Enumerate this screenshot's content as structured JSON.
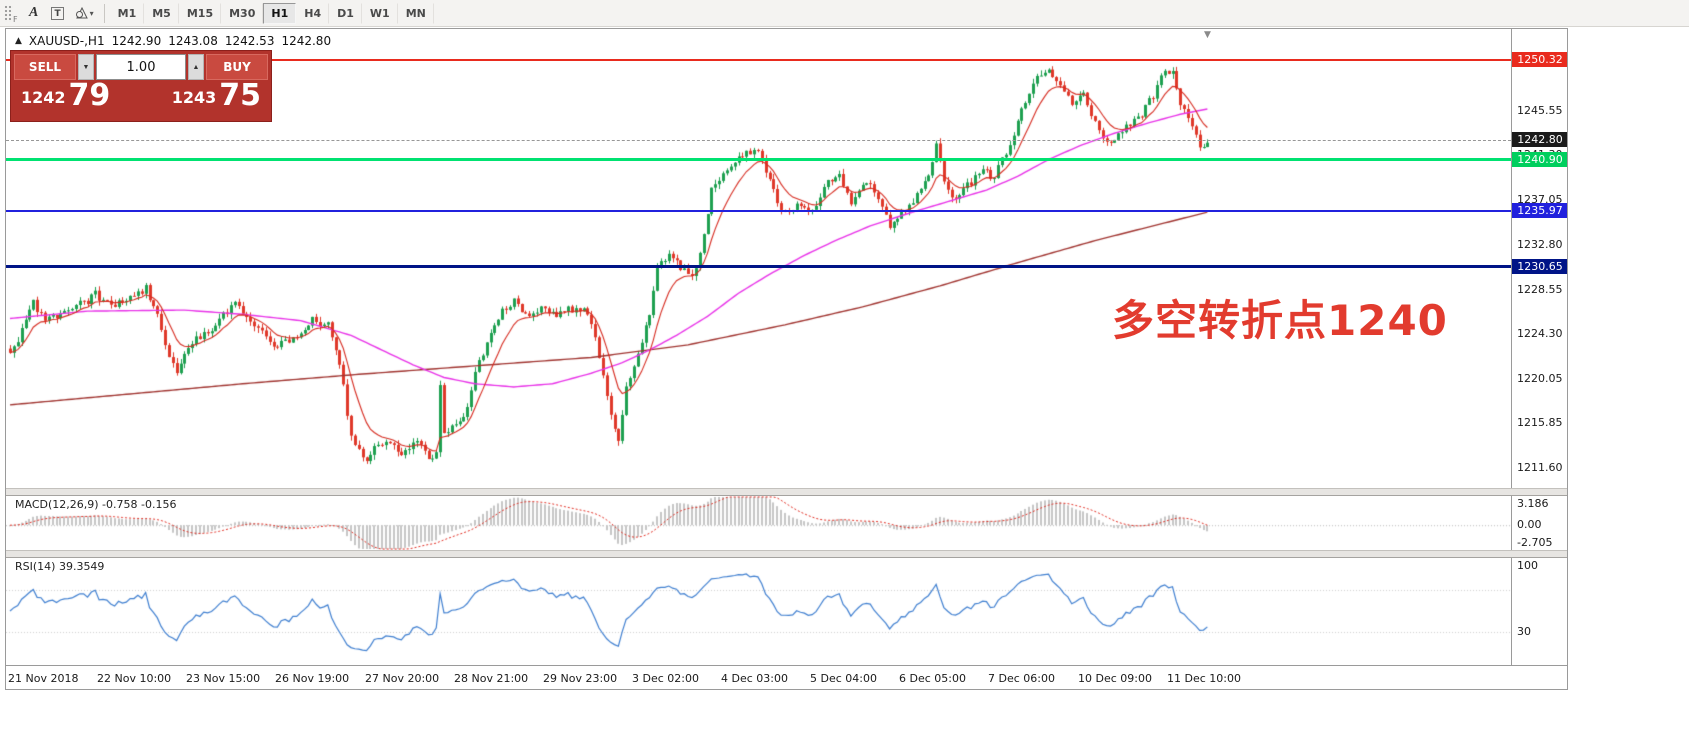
{
  "toolbar": {
    "grip_label": "F",
    "tool_a": "A",
    "tool_t": "T",
    "timeframes": [
      "M1",
      "M5",
      "M15",
      "M30",
      "H1",
      "H4",
      "D1",
      "W1",
      "MN"
    ],
    "active_timeframe": "H1"
  },
  "chart_header": {
    "symbol": "XAUUSD-,H1",
    "open": "1242.90",
    "high": "1243.08",
    "low": "1242.53",
    "close": "1242.80"
  },
  "trade_panel": {
    "sell_label": "SELL",
    "buy_label": "BUY",
    "volume": "1.00",
    "sell_price_main": "1242",
    "sell_price_pips": "79",
    "buy_price_main": "1243",
    "buy_price_pips": "75"
  },
  "annotation": {
    "text": "多空转折点1240",
    "color": "#e23b2e"
  },
  "price_axis": {
    "grid_labels": [
      {
        "text": "1245.55",
        "value": 1245.55
      },
      {
        "text": "1241.30",
        "value": 1241.3
      },
      {
        "text": "1237.05",
        "value": 1237.05
      },
      {
        "text": "1232.80",
        "value": 1232.8
      },
      {
        "text": "1228.55",
        "value": 1228.55
      },
      {
        "text": "1224.30",
        "value": 1224.3
      },
      {
        "text": "1220.05",
        "value": 1220.05
      },
      {
        "text": "1215.85",
        "value": 1215.85
      },
      {
        "text": "1211.60",
        "value": 1211.6
      }
    ],
    "badges": [
      {
        "name": "resistance-1250",
        "text": "1250.32",
        "value": 1250.32,
        "bg": "#e92b1e",
        "line_color": "#e92b1e",
        "line_width": 2,
        "line_style": "solid"
      },
      {
        "name": "current-price",
        "text": "1242.80",
        "value": 1242.8,
        "bg": "#1b1b1b",
        "line_color": "#979797",
        "line_width": 1,
        "line_style": "dashed"
      },
      {
        "name": "pivot-1240",
        "text": "1240.90",
        "value": 1240.9,
        "bg": "#00cf5e",
        "line_color": "#00e271",
        "line_width": 3,
        "line_style": "solid"
      },
      {
        "name": "support-1235",
        "text": "1235.97",
        "value": 1235.97,
        "bg": "#2121dd",
        "line_color": "#2121dd",
        "line_width": 2,
        "line_style": "solid"
      },
      {
        "name": "support-1230",
        "text": "1230.65",
        "value": 1230.65,
        "bg": "#001487",
        "line_color": "#001487",
        "line_width": 3,
        "line_style": "solid"
      }
    ]
  },
  "indicators": {
    "macd": {
      "label": "MACD(12,26,9) -0.758 -0.156",
      "params": [
        12,
        26,
        9
      ],
      "macd_value": -0.758,
      "signal_value": -0.156,
      "scale": [
        {
          "text": "3.186",
          "value": 3.186
        },
        {
          "text": "0.00",
          "value": 0
        },
        {
          "text": "-2.705",
          "value": -2.705
        }
      ],
      "range": [
        -2.705,
        3.186
      ]
    },
    "rsi": {
      "label": "RSI(14) 39.3549",
      "period": 14,
      "value": 39.3549,
      "scale": [
        {
          "text": "100",
          "value": 100
        },
        {
          "text": "30",
          "value": 30
        }
      ],
      "range": [
        0,
        100
      ],
      "levels": [
        30,
        70
      ]
    }
  },
  "chart_data": {
    "type": "candlestick",
    "symbol": "XAUUSD",
    "timeframe": "H1",
    "title": "XAUUSD-,H1 1242.90 1243.08 1242.53 1242.80",
    "price_range": [
      1209.7,
      1253.3
    ],
    "candle_count": 310,
    "ma_fast_period": 9,
    "colors": {
      "up": "#1ea050",
      "down": "#df382a",
      "ma_fast": "#d62b20",
      "ma_mid": "#e832e8",
      "ma_slow": "#a03430",
      "macd_hist": "#c6c6c6",
      "macd_signal": "#e02b20",
      "rsi": "#3f7fd0"
    },
    "close_path": [
      [
        0,
        1222.3
      ],
      [
        3,
        1224.5
      ],
      [
        6,
        1227.3
      ],
      [
        9,
        1225.8
      ],
      [
        13,
        1226.2
      ],
      [
        18,
        1227.0
      ],
      [
        22,
        1228.2
      ],
      [
        26,
        1227.0
      ],
      [
        30,
        1227.6
      ],
      [
        35,
        1228.7
      ],
      [
        38,
        1226.0
      ],
      [
        41,
        1222.0
      ],
      [
        43,
        1221.0
      ],
      [
        46,
        1223.4
      ],
      [
        52,
        1224.8
      ],
      [
        58,
        1227.2
      ],
      [
        61,
        1226.0
      ],
      [
        64,
        1225.0
      ],
      [
        68,
        1223.2
      ],
      [
        73,
        1223.8
      ],
      [
        78,
        1225.9
      ],
      [
        82,
        1225.0
      ],
      [
        85,
        1221.5
      ],
      [
        88,
        1214.5
      ],
      [
        92,
        1212.3
      ],
      [
        95,
        1213.8
      ],
      [
        97,
        1214.3
      ],
      [
        101,
        1213.0
      ],
      [
        105,
        1214.1
      ],
      [
        108,
        1212.6
      ],
      [
        110,
        1213.2
      ],
      [
        111,
        1219.5
      ],
      [
        112,
        1214.8
      ],
      [
        117,
        1216.4
      ],
      [
        121,
        1221.8
      ],
      [
        125,
        1225.4
      ],
      [
        130,
        1227.6
      ],
      [
        134,
        1225.8
      ],
      [
        137,
        1227.1
      ],
      [
        141,
        1226.0
      ],
      [
        145,
        1226.8
      ],
      [
        149,
        1226.3
      ],
      [
        152,
        1222.5
      ],
      [
        155,
        1216.5
      ],
      [
        157,
        1214.3
      ],
      [
        159,
        1219.4
      ],
      [
        161,
        1221.0
      ],
      [
        165,
        1226.4
      ],
      [
        167,
        1230.4
      ],
      [
        170,
        1232.2
      ],
      [
        173,
        1230.8
      ],
      [
        176,
        1229.8
      ],
      [
        179,
        1233.4
      ],
      [
        181,
        1237.8
      ],
      [
        184,
        1239.4
      ],
      [
        188,
        1241.2
      ],
      [
        193,
        1241.7
      ],
      [
        197,
        1238.0
      ],
      [
        200,
        1235.6
      ],
      [
        203,
        1236.8
      ],
      [
        207,
        1235.8
      ],
      [
        210,
        1238.4
      ],
      [
        214,
        1239.2
      ],
      [
        217,
        1236.8
      ],
      [
        221,
        1238.8
      ],
      [
        224,
        1237.4
      ],
      [
        227,
        1234.6
      ],
      [
        230,
        1236.0
      ],
      [
        233,
        1237.0
      ],
      [
        237,
        1239.4
      ],
      [
        239,
        1242.8
      ],
      [
        241,
        1238.6
      ],
      [
        244,
        1237.0
      ],
      [
        247,
        1238.4
      ],
      [
        251,
        1240.1
      ],
      [
        254,
        1239.0
      ],
      [
        256,
        1241.0
      ],
      [
        259,
        1243.4
      ],
      [
        262,
        1246.4
      ],
      [
        265,
        1248.6
      ],
      [
        268,
        1249.7
      ],
      [
        271,
        1248.0
      ],
      [
        274,
        1246.4
      ],
      [
        277,
        1247.4
      ],
      [
        279,
        1245.0
      ],
      [
        282,
        1243.0
      ],
      [
        284,
        1242.0
      ],
      [
        287,
        1243.8
      ],
      [
        289,
        1244.4
      ],
      [
        292,
        1245.4
      ],
      [
        295,
        1247.0
      ],
      [
        297,
        1248.8
      ],
      [
        300,
        1249.2
      ],
      [
        302,
        1246.4
      ],
      [
        305,
        1244.4
      ],
      [
        307,
        1241.8
      ],
      [
        309,
        1242.8
      ]
    ],
    "ma_mid_path": [
      [
        0,
        1225.8
      ],
      [
        20,
        1226.5
      ],
      [
        45,
        1226.6
      ],
      [
        60,
        1226.2
      ],
      [
        75,
        1225.6
      ],
      [
        88,
        1224.2
      ],
      [
        96,
        1222.8
      ],
      [
        104,
        1221.4
      ],
      [
        112,
        1220.2
      ],
      [
        120,
        1219.6
      ],
      [
        130,
        1219.3
      ],
      [
        140,
        1219.6
      ],
      [
        150,
        1220.6
      ],
      [
        158,
        1221.6
      ],
      [
        165,
        1222.8
      ],
      [
        172,
        1224.2
      ],
      [
        180,
        1226.0
      ],
      [
        188,
        1228.2
      ],
      [
        196,
        1230.0
      ],
      [
        205,
        1231.8
      ],
      [
        213,
        1233.2
      ],
      [
        222,
        1234.6
      ],
      [
        232,
        1235.8
      ],
      [
        242,
        1236.9
      ],
      [
        252,
        1238.0
      ],
      [
        260,
        1239.3
      ],
      [
        268,
        1240.9
      ],
      [
        276,
        1242.2
      ],
      [
        285,
        1243.4
      ],
      [
        294,
        1244.4
      ],
      [
        302,
        1245.2
      ],
      [
        309,
        1245.7
      ]
    ],
    "ma_slow_path": [
      [
        0,
        1217.6
      ],
      [
        30,
        1218.6
      ],
      [
        60,
        1219.6
      ],
      [
        90,
        1220.5
      ],
      [
        120,
        1221.3
      ],
      [
        150,
        1222.1
      ],
      [
        175,
        1223.3
      ],
      [
        200,
        1225.2
      ],
      [
        220,
        1226.9
      ],
      [
        240,
        1228.9
      ],
      [
        260,
        1231.1
      ],
      [
        280,
        1233.2
      ],
      [
        295,
        1234.6
      ],
      [
        309,
        1235.9
      ]
    ],
    "x_labels": [
      {
        "text": "21 Nov 2018",
        "i": 0
      },
      {
        "text": "22 Nov 10:00",
        "i": 23
      },
      {
        "text": "23 Nov 15:00",
        "i": 46
      },
      {
        "text": "26 Nov 19:00",
        "i": 69
      },
      {
        "text": "27 Nov 20:00",
        "i": 92
      },
      {
        "text": "28 Nov 21:00",
        "i": 115
      },
      {
        "text": "29 Nov 23:00",
        "i": 138
      },
      {
        "text": "3 Dec 02:00",
        "i": 161
      },
      {
        "text": "4 Dec 03:00",
        "i": 184
      },
      {
        "text": "5 Dec 04:00",
        "i": 207
      },
      {
        "text": "6 Dec 05:00",
        "i": 230
      },
      {
        "text": "7 Dec 06:00",
        "i": 253
      },
      {
        "text": "10 Dec 09:00",
        "i": 276
      },
      {
        "text": "11 Dec 10:00",
        "i": 299
      }
    ]
  }
}
